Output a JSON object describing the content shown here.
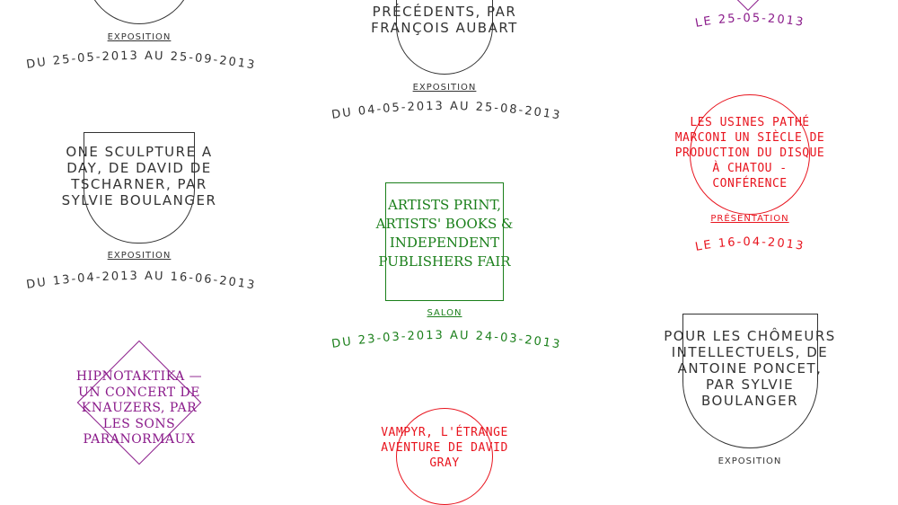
{
  "items": {
    "item_a": {
      "date": "DU 25-05-2013 AU 25-09-2013",
      "category": "EXPOSITION"
    },
    "item_b": {
      "title": "L'ÉCHO DES PRÉCÉDENTS, PAR FRANÇOIS AUBART",
      "category": "EXPOSITION",
      "date": "DU 04-05-2013 AU 25-08-2013"
    },
    "item_c": {
      "date": "LE 25-05-2013"
    },
    "item_d": {
      "title": "ONE SCULPTURE A DAY, DE DAVID DE TSCHARNER, PAR SYLVIE BOULANGER",
      "category": "EXPOSITION",
      "date": "DU 13-04-2013 AU 16-06-2013"
    },
    "item_e": {
      "title": "ARTISTS PRINT, ARTISTS' BOOKS & INDEPENDENT PUBLISHERS FAIR",
      "category": "SALON",
      "date": "DU 23-03-2013 AU 24-03-2013"
    },
    "item_f": {
      "title": "LES USINES PATHÉ MARCONI UN SIÈCLE DE PRODUCTION DU DISQUE À CHATOU - CONFÉRENCE",
      "category": "PRÉSENTATION",
      "date": "LE 16-04-2013"
    },
    "item_g": {
      "title": "HIPNOTAKTIKA — UN CONCERT DE KNAUZERS, PAR LES SONS PARANORMAUX"
    },
    "item_h": {
      "title": "VAMPYR, L'ÉTRANGE AVENTURE DE DAVID GRAY"
    },
    "item_i": {
      "title": "POUR LES CHÔMEURS INTELLECTUELS, DE ANTOINE PONCET, PAR SYLVIE BOULANGER",
      "category": "EXPOSITION"
    }
  },
  "colors": {
    "dark": "#333333",
    "red": "#e8141e",
    "green": "#1a7f1a",
    "purple": "#8a1a8a"
  }
}
